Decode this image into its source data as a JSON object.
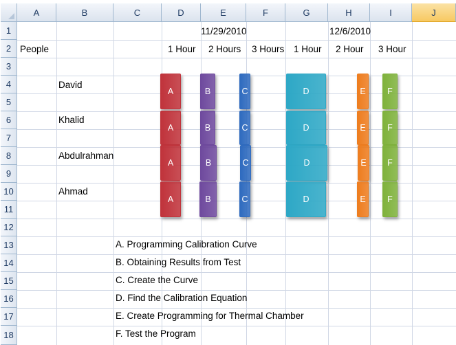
{
  "columns": [
    "A",
    "B",
    "C",
    "D",
    "E",
    "F",
    "G",
    "H",
    "I",
    "J"
  ],
  "rows": [
    "1",
    "2",
    "3",
    "4",
    "5",
    "6",
    "7",
    "8",
    "9",
    "10",
    "11",
    "12",
    "13",
    "14",
    "15",
    "16",
    "17",
    "18"
  ],
  "cells": {
    "date1": "11/29/2010",
    "date2": "12/6/2010",
    "people_label": "People",
    "hours": [
      "1 Hour",
      "2 Hours",
      "3 Hours",
      "1 Hour",
      "2 Hour",
      "3 Hour"
    ],
    "people": [
      "David",
      "Khalid",
      "Abdulrahman",
      "Ahmad"
    ],
    "legend": [
      "A. Programming Calibration Curve",
      "B. Obtaining Results from Test",
      "C. Create the Curve",
      "D. Find the Calibration Equation",
      "E. Create Programming for Thermal Chamber",
      "F. Test the Program"
    ]
  },
  "tasks": [
    {
      "label": "A",
      "color": "#c0333b"
    },
    {
      "label": "B",
      "color": "#6f4a9e"
    },
    {
      "label": "C",
      "color": "#2f6bbf"
    },
    {
      "label": "D",
      "color": "#2ea8c6"
    },
    {
      "label": "E",
      "color": "#ee7d1f"
    },
    {
      "label": "F",
      "color": "#7fb23c"
    }
  ],
  "selected_column": "J"
}
